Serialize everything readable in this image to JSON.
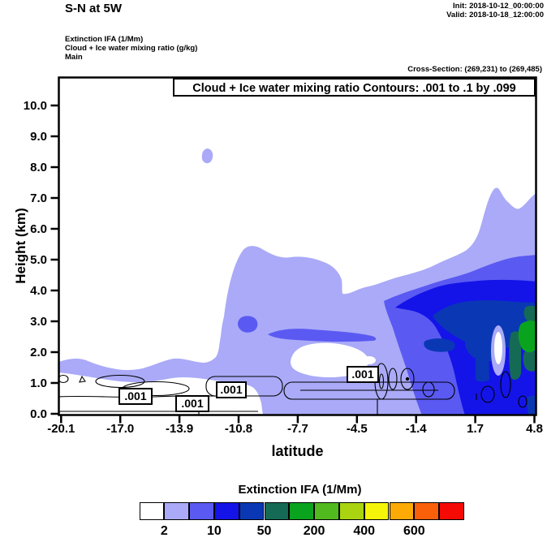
{
  "header": {
    "title": "S-N at 5W",
    "init_label": "Init: 2018-10-12_00:00:00",
    "valid_label": "Valid: 2018-10-18_12:00:00"
  },
  "meta": {
    "lines": [
      "Extinction IFA (1/Mm)",
      "Cloud + Ice water mixing ratio (g/kg)",
      "Main"
    ],
    "cross_section": "Cross-Section: (269,231) to (269,485)"
  },
  "plot": {
    "contour_title": "Cloud + Ice water mixing ratio Contours: .001 to .1 by .099",
    "xlabel": "latitude",
    "ylabel": "Height (km)",
    "x_ticks": [
      "-20.1",
      "-17.0",
      "-13.9",
      "-10.8",
      "-7.7",
      "-4.5",
      "-1.4",
      "1.7",
      "4.8"
    ],
    "y_ticks": [
      "10.0",
      "9.0",
      "8.0",
      "7.0",
      "6.0",
      "5.0",
      "4.0",
      "3.0",
      "2.0",
      "1.0",
      "0.0"
    ],
    "contour_labels": [
      ".001",
      ".001",
      ".001",
      ".001"
    ]
  },
  "colorbar": {
    "title": "Extinction IFA (1/Mm)",
    "tick_labels": [
      "2",
      "10",
      "50",
      "200",
      "400",
      "600"
    ],
    "colors": [
      "#ffffff",
      "#aaaaf8",
      "#5a5af2",
      "#1414e8",
      "#0a38b4",
      "#156a55",
      "#0aa31e",
      "#50ba1e",
      "#aad40f",
      "#f5f50a",
      "#fcaa05",
      "#fa5f0a",
      "#f50a05"
    ]
  },
  "palette": {
    "background": "#ffffff",
    "frame": "#000000",
    "contour_line": "#000000",
    "white": "#ffffff",
    "lavender": "#aaaaf8",
    "violet": "#5a5af2",
    "blue": "#1414e8",
    "navy": "#0a38b4",
    "teal": "#156a55",
    "green": "#0aa31e"
  },
  "chart_data": {
    "type": "heatmap",
    "subtype": "filled-contour-cross-section",
    "title": "Cloud + Ice water mixing ratio Contours: .001 to .1 by .099",
    "suptitle": "S-N at 5W",
    "xlabel": "latitude",
    "ylabel": "Height (km)",
    "xlim": [
      -20.1,
      4.8
    ],
    "ylim": [
      0,
      11
    ],
    "x_tick_values": [
      -20.1,
      -17.0,
      -13.9,
      -10.8,
      -7.7,
      -4.5,
      -1.4,
      1.7,
      4.8
    ],
    "y_tick_values": [
      0,
      1,
      2,
      3,
      4,
      5,
      6,
      7,
      8,
      9,
      10
    ],
    "fill_field": "Extinction IFA (1/Mm)",
    "fill_labeled_levels": [
      2,
      10,
      50,
      200,
      400,
      600
    ],
    "fill_cell_ranges_estimated": [
      "<2",
      "2-5",
      "5-10",
      "10-25",
      "25-50",
      "50-100",
      "100-200",
      "200-300",
      "300-400",
      "400-500",
      "500-600",
      "600-700",
      ">700"
    ],
    "overlay_field": "Cloud + Ice water mixing ratio (g/kg)",
    "overlay_contour_levels": [
      0.001,
      0.1
    ],
    "overlay_contour_label": ".001",
    "grid": false,
    "legend_position": "bottom-colorbar",
    "features": [
      {
        "name": "low-level aerosol/cloud band",
        "lat_range": [
          -20.1,
          4.8
        ],
        "height_km": [
          0,
          2.2
        ],
        "extinction_1_per_Mm": "2-10"
      },
      {
        "name": "clear near-surface wedge",
        "lat_range": [
          -20.1,
          -9.5
        ],
        "height_km": [
          0,
          1.3
        ],
        "extinction_1_per_Mm": "<2"
      },
      {
        "name": "mid-level plume blob",
        "lat_range": [
          -11.5,
          -5.1
        ],
        "height_km": [
          2.4,
          5.3
        ],
        "extinction_1_per_Mm": "2-10"
      },
      {
        "name": "small elevated patch",
        "lat_range": [
          -12.6,
          -12.1
        ],
        "height_km": [
          8.1,
          8.6
        ],
        "extinction_1_per_Mm": "2-5"
      },
      {
        "name": "deep northern plume",
        "lat_range": [
          -3.5,
          4.8
        ],
        "height_km": [
          0,
          7.3
        ],
        "extinction_1_per_Mm": "10-50 core, 25-50 navy band 3-4 km"
      },
      {
        "name": "maximum extinction core",
        "lat_range": [
          4.0,
          4.8
        ],
        "height_km": [
          2.0,
          3.0
        ],
        "extinction_1_per_Mm": "100-200"
      },
      {
        "name": "cloud mixing ratio .001 contours",
        "lat_range": [
          -20.1,
          4.8
        ],
        "height_km": [
          0.3,
          1.5
        ],
        "note": "thin black closed contours near 0.5-1.2 km with four .001 labels"
      }
    ]
  }
}
